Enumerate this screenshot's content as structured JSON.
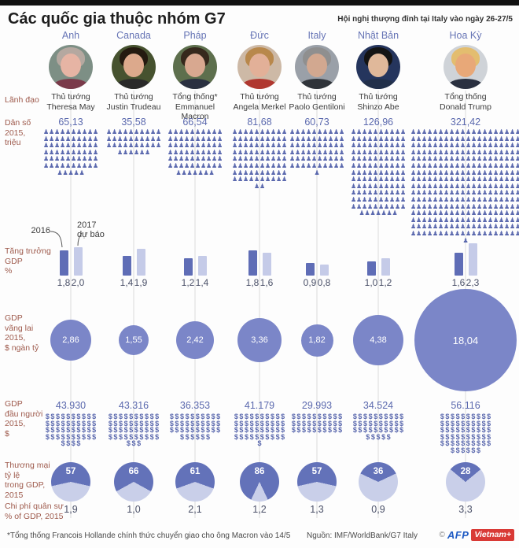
{
  "header": {
    "title": "Các quốc gia thuộc nhóm G7",
    "note": "Hội nghị thượng đỉnh tại Italy vào ngày 26-27/5"
  },
  "row_labels": {
    "leader": "Lãnh đạo",
    "population": "Dân số\n2015,\ntriệu",
    "gdp_growth": "Tăng trưởng\nGDP\n%",
    "gdp_total": "GDP\nvãng lai\n2015,\n$ ngàn tỷ",
    "gdp_per_capita": "GDP\nđầu người\n2015,\n$",
    "trade": "Thương mại\ntỷ lệ\ntrong GDP,\n2015",
    "military": "Chi phí quân sự\n% of GDP,  2015"
  },
  "annotations": {
    "bar_2016": "2016",
    "bar_2017": "2017\ndự báo"
  },
  "countries": [
    {
      "name": "Anh",
      "leader_title": "Thủ tướng",
      "leader_name": "Theresa May",
      "population": "65,13",
      "growth_2016": "1,8",
      "growth_2017": "2,0",
      "gdp": "2,86",
      "gdp_per_capita": "43.930",
      "trade": "57",
      "military": "1,9",
      "avatar": {
        "bg": "#7d8f85",
        "hair": "#b5a8a0",
        "skin": "#e6b4a4",
        "suit": "#7a3a4a"
      }
    },
    {
      "name": "Canada",
      "leader_title": "Thủ tướng",
      "leader_name": "Justin Trudeau",
      "population": "35,58",
      "growth_2016": "1,4",
      "growth_2017": "1,9",
      "gdp": "1,55",
      "gdp_per_capita": "43.316",
      "trade": "66",
      "military": "1,0",
      "avatar": {
        "bg": "#46522f",
        "hair": "#241a10",
        "skin": "#dca98c",
        "suit": "#2a2a2a"
      }
    },
    {
      "name": "Pháp",
      "leader_title": "Tổng thống*",
      "leader_name": "Emmanuel\nMacron",
      "population": "66,54",
      "growth_2016": "1,2",
      "growth_2017": "1,4",
      "gdp": "2,42",
      "gdp_per_capita": "36.353",
      "trade": "61",
      "military": "2,1",
      "avatar": {
        "bg": "#5d6f4d",
        "hair": "#35281c",
        "skin": "#d8a890",
        "suit": "#2a3040"
      }
    },
    {
      "name": "Đức",
      "leader_title": "Thủ tướng",
      "leader_name": "Angela Merkel",
      "population": "81,68",
      "growth_2016": "1,8",
      "growth_2017": "1,6",
      "gdp": "3,36",
      "gdp_per_capita": "41.179",
      "trade": "86",
      "military": "1,2",
      "avatar": {
        "bg": "#cdb9a6",
        "hair": "#b8884c",
        "skin": "#e2b098",
        "suit": "#b03830"
      }
    },
    {
      "name": "Italy",
      "leader_title": "Thủ tướng",
      "leader_name": "Paolo Gentiloni",
      "population": "60,73",
      "growth_2016": "0,9",
      "growth_2017": "0,8",
      "gdp": "1,82",
      "gdp_per_capita": "29.993",
      "trade": "57",
      "military": "1,3",
      "avatar": {
        "bg": "#9aa0a8",
        "hair": "#8f8f8f",
        "skin": "#d2a890",
        "suit": "#30343a"
      }
    },
    {
      "name": "Nhật Bản",
      "leader_title": "Thủ tướng",
      "leader_name": "Shinzo Abe",
      "population": "126,96",
      "growth_2016": "1,0",
      "growth_2017": "1,2",
      "gdp": "4,38",
      "gdp_per_capita": "34.524",
      "trade": "36",
      "military": "0,9",
      "avatar": {
        "bg": "#25355d",
        "hair": "#141414",
        "skin": "#e0b89a",
        "suit": "#22304a"
      }
    },
    {
      "name": "Hoa Kỳ",
      "leader_title": "Tổng thống",
      "leader_name": "Donald Trump",
      "population": "321,42",
      "growth_2016": "1,6",
      "growth_2017": "2,3",
      "gdp": "18,04",
      "gdp_per_capita": "56.116",
      "trade": "28",
      "military": "3,3",
      "avatar": {
        "bg": "#cfd3d8",
        "hair": "#e3bd6f",
        "skin": "#e8a878",
        "suit": "#2a3040"
      }
    }
  ],
  "chart_data": [
    {
      "id": "population",
      "type": "bar",
      "title": "Dân số 2015, triệu",
      "categories": [
        "Anh",
        "Canada",
        "Pháp",
        "Đức",
        "Italy",
        "Nhật Bản",
        "Hoa Kỳ"
      ],
      "values": [
        65.13,
        35.58,
        66.54,
        81.68,
        60.73,
        126.96,
        321.42
      ]
    },
    {
      "id": "gdp_growth",
      "type": "bar",
      "title": "Tăng trưởng GDP %",
      "categories": [
        "Anh",
        "Canada",
        "Pháp",
        "Đức",
        "Italy",
        "Nhật Bản",
        "Hoa Kỳ"
      ],
      "series": [
        {
          "name": "2016",
          "values": [
            1.8,
            1.4,
            1.2,
            1.8,
            0.9,
            1.0,
            1.6
          ]
        },
        {
          "name": "2017 dự báo",
          "values": [
            2.0,
            1.9,
            1.4,
            1.6,
            0.8,
            1.2,
            2.3
          ]
        }
      ]
    },
    {
      "id": "gdp_total",
      "type": "bar",
      "title": "GDP vãng lai 2015, $ ngàn tỷ",
      "categories": [
        "Anh",
        "Canada",
        "Pháp",
        "Đức",
        "Italy",
        "Nhật Bản",
        "Hoa Kỳ"
      ],
      "values": [
        2.86,
        1.55,
        2.42,
        3.36,
        1.82,
        4.38,
        18.04
      ]
    },
    {
      "id": "gdp_per_capita",
      "type": "bar",
      "title": "GDP đầu người 2015, $",
      "categories": [
        "Anh",
        "Canada",
        "Pháp",
        "Đức",
        "Italy",
        "Nhật Bản",
        "Hoa Kỳ"
      ],
      "values": [
        43930,
        43316,
        36353,
        41179,
        29993,
        34524,
        56116
      ]
    },
    {
      "id": "trade_share_gdp",
      "type": "pie",
      "title": "Thương mại tỷ lệ trong GDP, 2015",
      "categories": [
        "Anh",
        "Canada",
        "Pháp",
        "Đức",
        "Italy",
        "Nhật Bản",
        "Hoa Kỳ"
      ],
      "values": [
        57,
        66,
        61,
        86,
        57,
        36,
        28
      ]
    },
    {
      "id": "military_spend",
      "type": "bar",
      "title": "Chi phí quân sự % of GDP, 2015",
      "categories": [
        "Anh",
        "Canada",
        "Pháp",
        "Đức",
        "Italy",
        "Nhật Bản",
        "Hoa Kỳ"
      ],
      "values": [
        1.9,
        1.0,
        2.1,
        1.2,
        1.3,
        0.9,
        3.3
      ]
    }
  ],
  "footer": {
    "note": "*Tổng thống Francois Hollande chính thức chuyển giao cho ông Macron vào 14/5",
    "source": "Nguồn: IMF/WorldBank/G7 Italy",
    "logo": {
      "copyright": "©",
      "afp": "AFP",
      "vietnam": "Vietnam+"
    }
  },
  "colors": {
    "accent_purple": "#5b69ae",
    "bar_dark": "#5f6db6",
    "bar_light": "#c5cbe8",
    "bubble": "#7b86c8",
    "pie_dark": "#6372b9",
    "pie_light": "#c9cfe9",
    "label_brown": "#9e5a4c",
    "person_icon": "person-icon",
    "dollar_icon": "dollar-icon"
  }
}
